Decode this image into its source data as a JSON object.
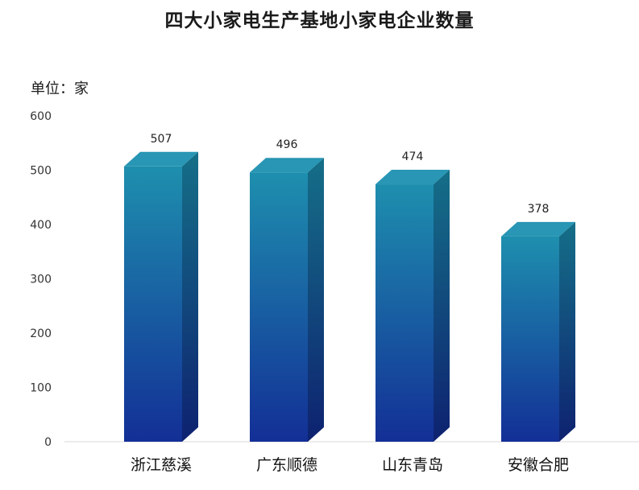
{
  "chart_data": {
    "type": "bar",
    "title": "四大小家电生产基地小家电企业数量",
    "unit_label": "单位：家",
    "categories": [
      "浙江慈溪",
      "广东顺德",
      "山东青岛",
      "安徽合肥"
    ],
    "values": [
      507,
      496,
      474,
      378
    ],
    "ylim": [
      0,
      600
    ],
    "yticks": [
      0,
      100,
      200,
      300,
      400,
      500,
      600
    ],
    "grid": false,
    "legend": "none",
    "colors": {
      "bar_top": "#1e8fae",
      "bar_bottom": "#132f96",
      "side_top": "#156f88",
      "side_bottom": "#0e2270",
      "cap": "#2896b4"
    }
  }
}
